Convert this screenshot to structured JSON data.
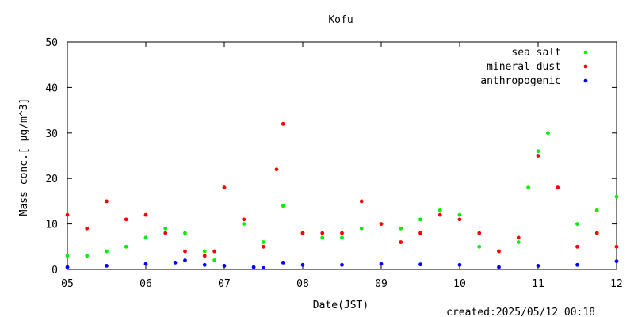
{
  "footer": {
    "created": "created:2025/05/12 00:18"
  },
  "chart_data": {
    "type": "scatter",
    "title": "Kofu",
    "xlabel": "Date(JST)",
    "ylabel": "Mass conc.[ μg/m^3]",
    "ylim": [
      0,
      50
    ],
    "yticks": [
      0,
      10,
      20,
      30,
      40,
      50
    ],
    "xlim": [
      "2025-05-05",
      "2025-05-12"
    ],
    "xticks": [
      "05",
      "06",
      "07",
      "08",
      "09",
      "10",
      "11",
      "12"
    ],
    "grid": false,
    "legend_position": "top-right",
    "series": [
      {
        "name": "sea salt",
        "color": "#00ee00",
        "x": [
          "2025-05-05 00:00",
          "2025-05-05 06:00",
          "2025-05-05 12:00",
          "2025-05-05 18:00",
          "2025-05-06 00:00",
          "2025-05-06 06:00",
          "2025-05-06 12:00",
          "2025-05-06 18:00",
          "2025-05-06 21:00",
          "2025-05-07 00:00",
          "2025-05-07 06:00",
          "2025-05-07 12:00",
          "2025-05-07 18:00",
          "2025-05-08 00:00",
          "2025-05-08 06:00",
          "2025-05-08 12:00",
          "2025-05-08 18:00",
          "2025-05-09 00:00",
          "2025-05-09 06:00",
          "2025-05-09 12:00",
          "2025-05-09 18:00",
          "2025-05-10 00:00",
          "2025-05-10 06:00",
          "2025-05-10 12:00",
          "2025-05-10 18:00",
          "2025-05-10 21:00",
          "2025-05-11 00:00",
          "2025-05-11 03:00",
          "2025-05-11 06:00",
          "2025-05-11 12:00",
          "2025-05-11 18:00",
          "2025-05-12 00:00"
        ],
        "values": [
          3,
          3,
          4,
          5,
          7,
          9,
          8,
          4,
          2,
          18,
          10,
          6,
          14,
          8,
          7,
          7,
          9,
          10,
          9,
          11,
          13,
          12,
          5,
          4,
          6,
          18,
          26,
          30,
          18,
          10,
          13,
          16
        ]
      },
      {
        "name": "mineral dust",
        "color": "#ff0000",
        "x": [
          "2025-05-05 00:00",
          "2025-05-05 06:00",
          "2025-05-05 12:00",
          "2025-05-05 18:00",
          "2025-05-06 00:00",
          "2025-05-06 06:00",
          "2025-05-06 12:00",
          "2025-05-06 18:00",
          "2025-05-06 21:00",
          "2025-05-07 00:00",
          "2025-05-07 06:00",
          "2025-05-07 12:00",
          "2025-05-07 16:00",
          "2025-05-07 18:00",
          "2025-05-08 00:00",
          "2025-05-08 06:00",
          "2025-05-08 12:00",
          "2025-05-08 18:00",
          "2025-05-09 00:00",
          "2025-05-09 06:00",
          "2025-05-09 12:00",
          "2025-05-09 18:00",
          "2025-05-10 00:00",
          "2025-05-10 06:00",
          "2025-05-10 12:00",
          "2025-05-10 18:00",
          "2025-05-11 00:00",
          "2025-05-11 06:00",
          "2025-05-11 12:00",
          "2025-05-11 18:00",
          "2025-05-12 00:00"
        ],
        "values": [
          12,
          9,
          15,
          11,
          12,
          8,
          4,
          3,
          4,
          18,
          11,
          5,
          22,
          32,
          8,
          8,
          8,
          15,
          10,
          6,
          8,
          12,
          11,
          8,
          4,
          7,
          25,
          18,
          5,
          8,
          5
        ]
      },
      {
        "name": "anthropogenic",
        "color": "#0000ff",
        "x": [
          "2025-05-05 00:00",
          "2025-05-05 12:00",
          "2025-05-06 00:00",
          "2025-05-06 09:00",
          "2025-05-06 12:00",
          "2025-05-06 18:00",
          "2025-05-07 00:00",
          "2025-05-07 09:00",
          "2025-05-07 12:00",
          "2025-05-07 18:00",
          "2025-05-08 00:00",
          "2025-05-08 12:00",
          "2025-05-09 00:00",
          "2025-05-09 12:00",
          "2025-05-10 00:00",
          "2025-05-10 12:00",
          "2025-05-11 00:00",
          "2025-05-11 12:00",
          "2025-05-12 00:00"
        ],
        "values": [
          0.5,
          0.8,
          1.2,
          1.5,
          2.0,
          1.0,
          0.8,
          0.5,
          0.3,
          1.5,
          1.0,
          1.0,
          1.2,
          1.1,
          1.0,
          0.5,
          0.8,
          1.0,
          1.8
        ]
      }
    ]
  }
}
